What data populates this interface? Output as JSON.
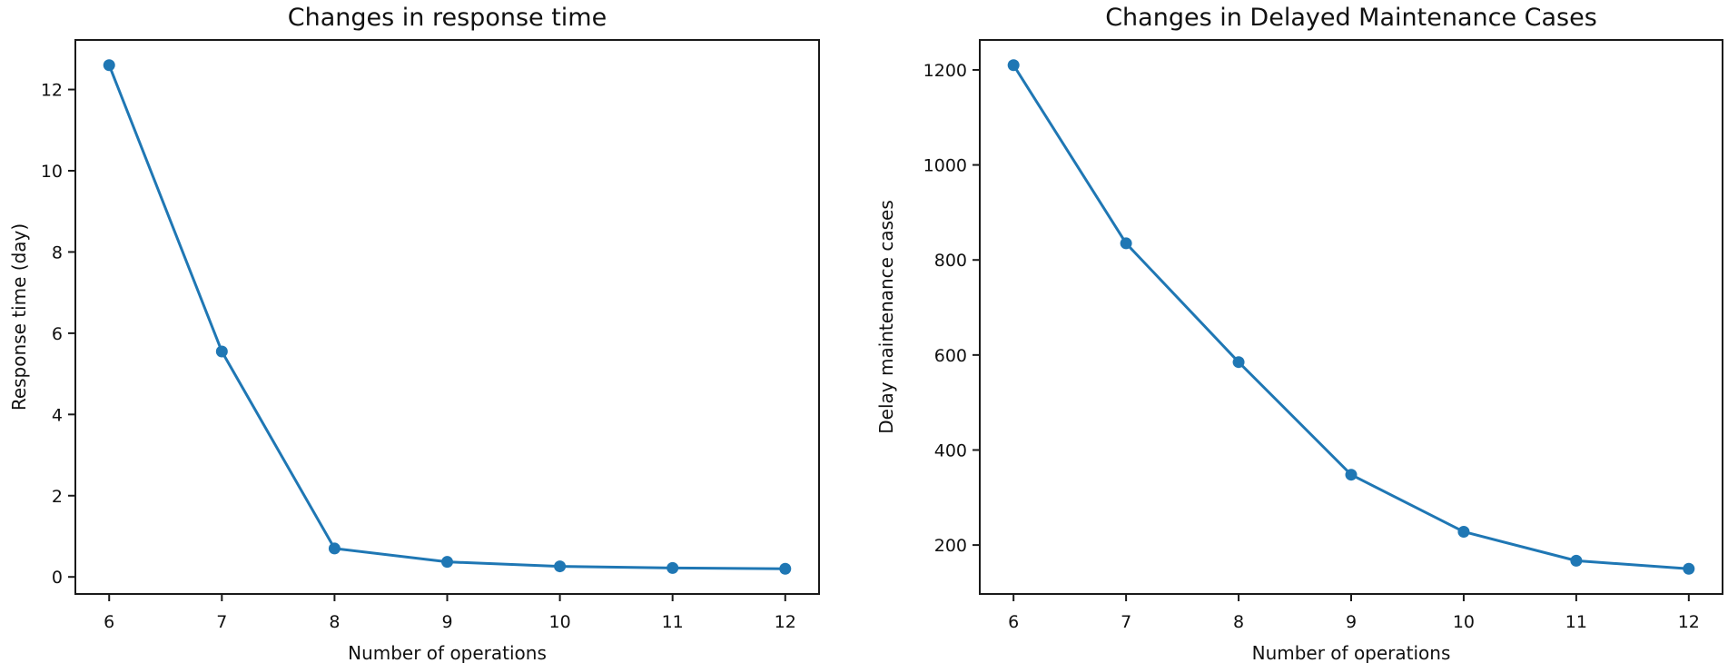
{
  "figure": {
    "background": "#ffffff",
    "text_color": "#111111",
    "spine_color": "#1a1a1a"
  },
  "chart_data": [
    {
      "type": "line",
      "title": "Changes in response time",
      "xlabel": "Number of operations",
      "ylabel": "Response time (day)",
      "x": [
        6,
        7,
        8,
        9,
        10,
        11,
        12
      ],
      "y": [
        12.6,
        5.55,
        0.7,
        0.37,
        0.26,
        0.22,
        0.2
      ],
      "xticks": [
        6,
        7,
        8,
        9,
        10,
        11,
        12
      ],
      "yticks": [
        0,
        2,
        4,
        6,
        8,
        10,
        12
      ],
      "xlim": [
        5.7,
        12.3
      ],
      "ylim": [
        -0.42,
        13.22
      ],
      "line_color": "#1f77b4",
      "marker": "circle",
      "grid": false,
      "legend": "none"
    },
    {
      "type": "line",
      "title": "Changes in Delayed Maintenance Cases",
      "xlabel": "Number of operations",
      "ylabel": "Delay maintenance cases",
      "x": [
        6,
        7,
        8,
        9,
        10,
        11,
        12
      ],
      "y": [
        1210,
        835,
        585,
        348,
        228,
        167,
        150
      ],
      "xticks": [
        6,
        7,
        8,
        9,
        10,
        11,
        12
      ],
      "yticks": [
        200,
        400,
        600,
        800,
        1000,
        1200
      ],
      "xlim": [
        5.7,
        12.3
      ],
      "ylim": [
        97,
        1263
      ],
      "line_color": "#1f77b4",
      "marker": "circle",
      "grid": false,
      "legend": "none"
    }
  ]
}
